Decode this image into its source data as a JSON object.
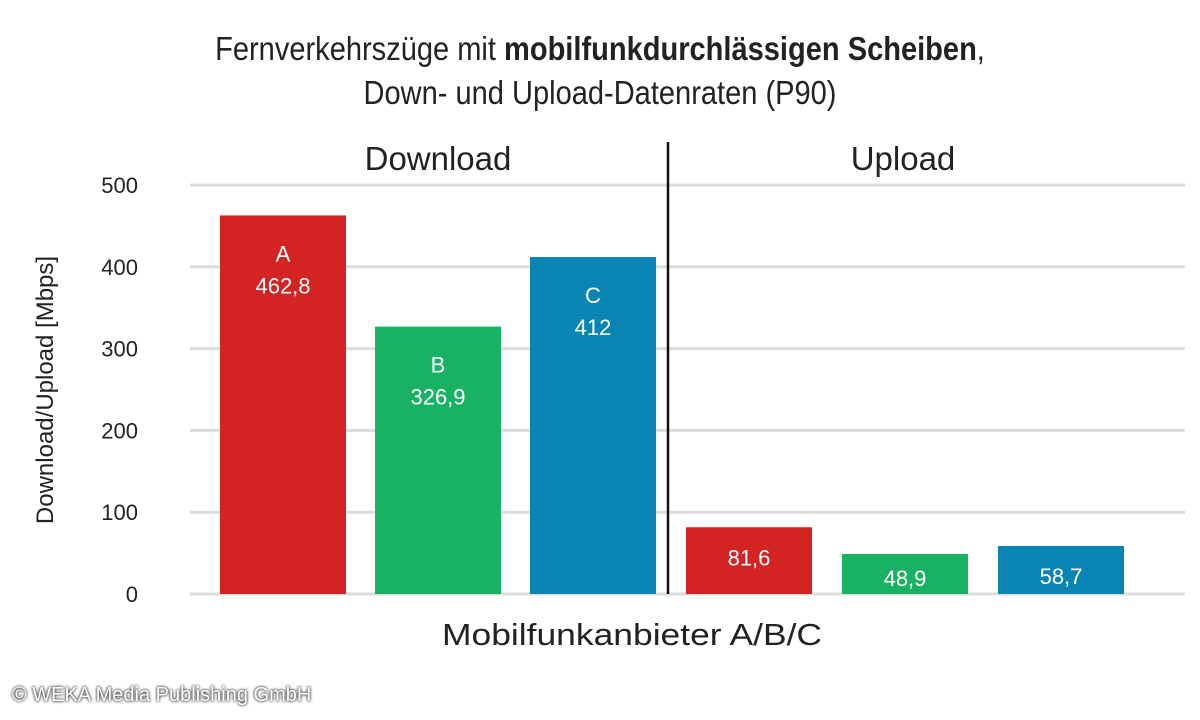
{
  "chart_data": {
    "type": "bar",
    "title_line1_normal": "Fernverkehrszüge mit ",
    "title_line1_bold": "mobilfunkdurchlässigen Scheiben",
    "title_line1_end": ",",
    "title_line2": "Down- und Upload-Datenraten (P90)",
    "ylabel": "Download/Upload  [Mbps]",
    "xlabel": "Mobilfunkanbieter A/B/C",
    "ylim": [
      0,
      500
    ],
    "yticks": [
      "0",
      "100",
      "200",
      "300",
      "400",
      "500"
    ],
    "grid": true,
    "groups": [
      {
        "name": "Download",
        "bars": [
          {
            "category": "A",
            "value": 462.8,
            "label": "462,8",
            "color": "#d42323"
          },
          {
            "category": "B",
            "value": 326.9,
            "label": "326,9",
            "color": "#19b263"
          },
          {
            "category": "C",
            "value": 412,
            "label": "412",
            "color": "#0a85b3"
          }
        ]
      },
      {
        "name": "Upload",
        "bars": [
          {
            "category": "A",
            "value": 81.6,
            "label": "81,6",
            "color": "#d42323"
          },
          {
            "category": "B",
            "value": 48.9,
            "label": "48,9",
            "color": "#19b263"
          },
          {
            "category": "C",
            "value": 58.7,
            "label": "58,7",
            "color": "#0a85b3"
          }
        ]
      }
    ]
  },
  "copyright": "© WEKA Media Publishing GmbH"
}
